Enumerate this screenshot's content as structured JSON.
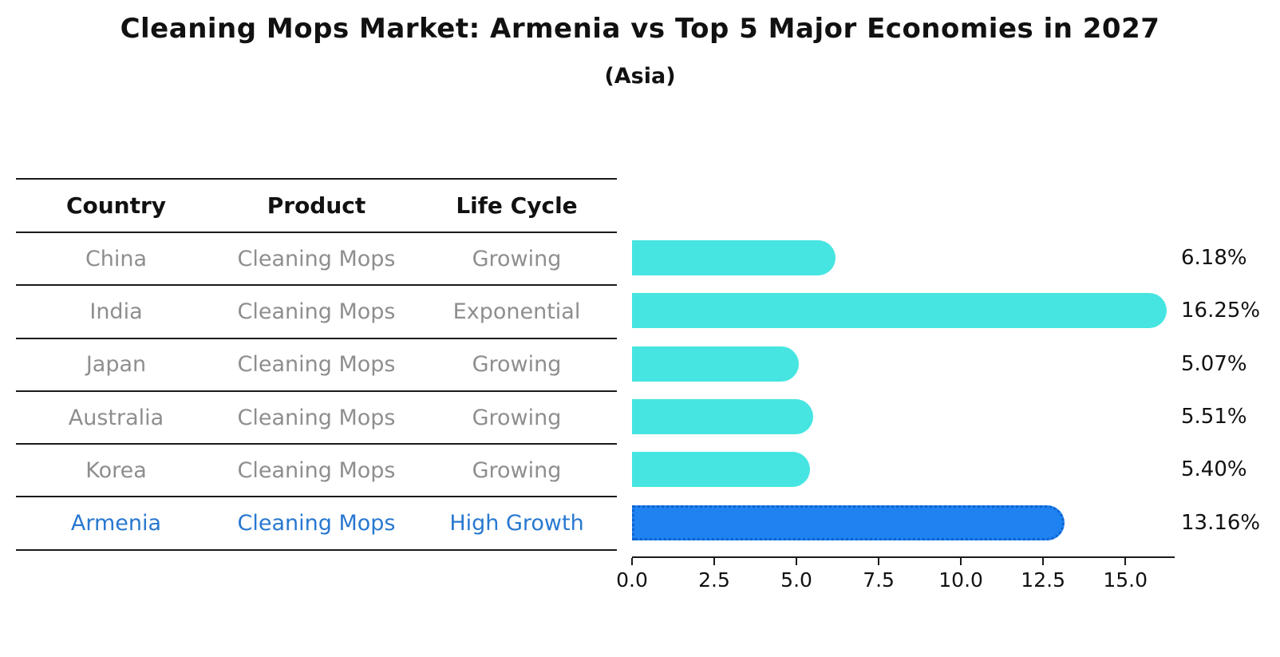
{
  "title": "Cleaning Mops Market: Armenia vs Top 5 Major Economies in 2027",
  "subtitle": "(Asia)",
  "table": {
    "headers": [
      "Country",
      "Product",
      "Life Cycle"
    ],
    "rows": [
      {
        "country": "China",
        "product": "Cleaning Mops",
        "life_cycle": "Growing",
        "highlight": false
      },
      {
        "country": "India",
        "product": "Cleaning Mops",
        "life_cycle": "Exponential",
        "highlight": false
      },
      {
        "country": "Japan",
        "product": "Cleaning Mops",
        "life_cycle": "Growing",
        "highlight": false
      },
      {
        "country": "Australia",
        "product": "Cleaning Mops",
        "life_cycle": "Growing",
        "highlight": false
      },
      {
        "country": "Korea",
        "product": "Cleaning Mops",
        "life_cycle": "Growing",
        "highlight": false
      },
      {
        "country": "Armenia",
        "product": "Cleaning Mops",
        "life_cycle": "High Growth",
        "highlight": true
      }
    ]
  },
  "chart_data": {
    "type": "bar",
    "orientation": "horizontal",
    "title": "Cleaning Mops Market: Armenia vs Top 5 Major Economies in 2027",
    "subtitle": "(Asia)",
    "categories": [
      "China",
      "India",
      "Japan",
      "Australia",
      "Korea",
      "Armenia"
    ],
    "values": [
      6.18,
      16.25,
      5.07,
      5.51,
      5.4,
      13.16
    ],
    "value_labels": [
      "6.18%",
      "16.25%",
      "5.07%",
      "5.51%",
      "5.40%",
      "13.16%"
    ],
    "highlight_index": 5,
    "xlabel": "",
    "ylabel": "",
    "xlim": [
      0,
      16.5
    ],
    "xticks": [
      0,
      2.5,
      5,
      7.5,
      10,
      12.5,
      15
    ],
    "xtick_labels": [
      "0.0",
      "2.5",
      "5.0",
      "7.5",
      "10.0",
      "12.5",
      "15.0"
    ],
    "grid": false,
    "legend": false
  },
  "colors": {
    "bar": "#46e5e1",
    "highlight_bar": "#1e82f0",
    "highlight_bar_edge": "#0e63cf",
    "highlight_text": "#2878d0",
    "row_text": "#8e8e8e",
    "header_text": "#111111",
    "axis": "#1a1a1a"
  }
}
